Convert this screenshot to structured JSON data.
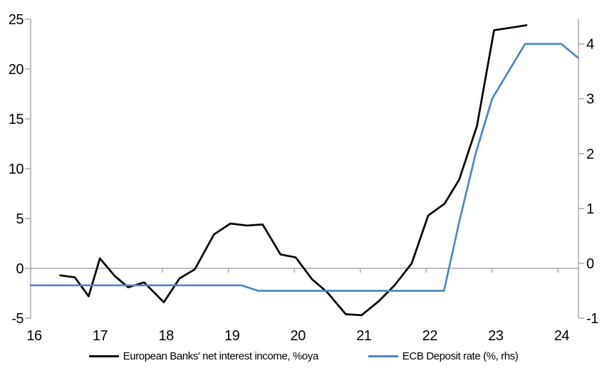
{
  "chart_data": {
    "type": "line",
    "title": "",
    "grid": "zero-line-only",
    "legend_position": "bottom",
    "axis_color": "#A6A6A6",
    "x_axis": {
      "tick_years": [
        16,
        17,
        18,
        19,
        20,
        21,
        22,
        23,
        24
      ],
      "tick_labels": [
        "16",
        "17",
        "18",
        "19",
        "20",
        "21",
        "22",
        "23",
        "24"
      ],
      "range": [
        16,
        24.31
      ]
    },
    "left_axis": {
      "ticks": [
        -5,
        0,
        5,
        10,
        15,
        20,
        25
      ],
      "tick_labels": [
        "-5",
        "0",
        "5",
        "10",
        "15",
        "20",
        "25"
      ],
      "range": [
        -5,
        25
      ]
    },
    "right_axis": {
      "ticks": [
        -1,
        0,
        1,
        2,
        3,
        4
      ],
      "tick_labels": [
        "-1",
        "0",
        "1",
        "2",
        "3",
        "4"
      ],
      "range": [
        -1,
        4.45
      ]
    },
    "series": [
      {
        "name": "European Banks' net interest income, %oya",
        "axis": "left",
        "color": "#000000",
        "x": [
          16.45,
          16.67,
          16.88,
          17.05,
          17.28,
          17.48,
          17.72,
          18.02,
          18.26,
          18.49,
          18.78,
          19.03,
          19.28,
          19.52,
          19.79,
          20.02,
          20.27,
          20.5,
          20.78,
          21.02,
          21.28,
          21.52,
          21.78,
          22.03,
          22.28,
          22.5,
          22.77,
          23.03,
          23.28,
          23.52
        ],
        "values": [
          -0.7,
          -0.9,
          -2.8,
          1.0,
          -0.8,
          -1.9,
          -1.4,
          -3.4,
          -1.0,
          -0.1,
          3.4,
          4.5,
          4.3,
          4.4,
          1.4,
          1.1,
          -1.1,
          -2.4,
          -4.6,
          -4.7,
          -3.3,
          -1.7,
          0.5,
          5.3,
          6.5,
          8.9,
          14.3,
          23.9,
          24.15,
          24.4
        ]
      },
      {
        "name": "ECB Deposit rate (%, rhs)",
        "axis": "right",
        "color": "#4E86C2",
        "x": [
          16.0,
          19.2,
          19.45,
          22.27,
          22.5,
          22.75,
          23.0,
          23.5,
          24.05,
          24.3
        ],
        "values": [
          -0.4,
          -0.4,
          -0.5,
          -0.5,
          0.75,
          2.0,
          3.0,
          4.0,
          4.0,
          3.75
        ]
      }
    ]
  },
  "legend": {
    "items": [
      {
        "label": "European Banks' net interest income, %oya",
        "color": "#000000"
      },
      {
        "label": "ECB Deposit rate (%, rhs)",
        "color": "#4E86C2"
      }
    ]
  }
}
